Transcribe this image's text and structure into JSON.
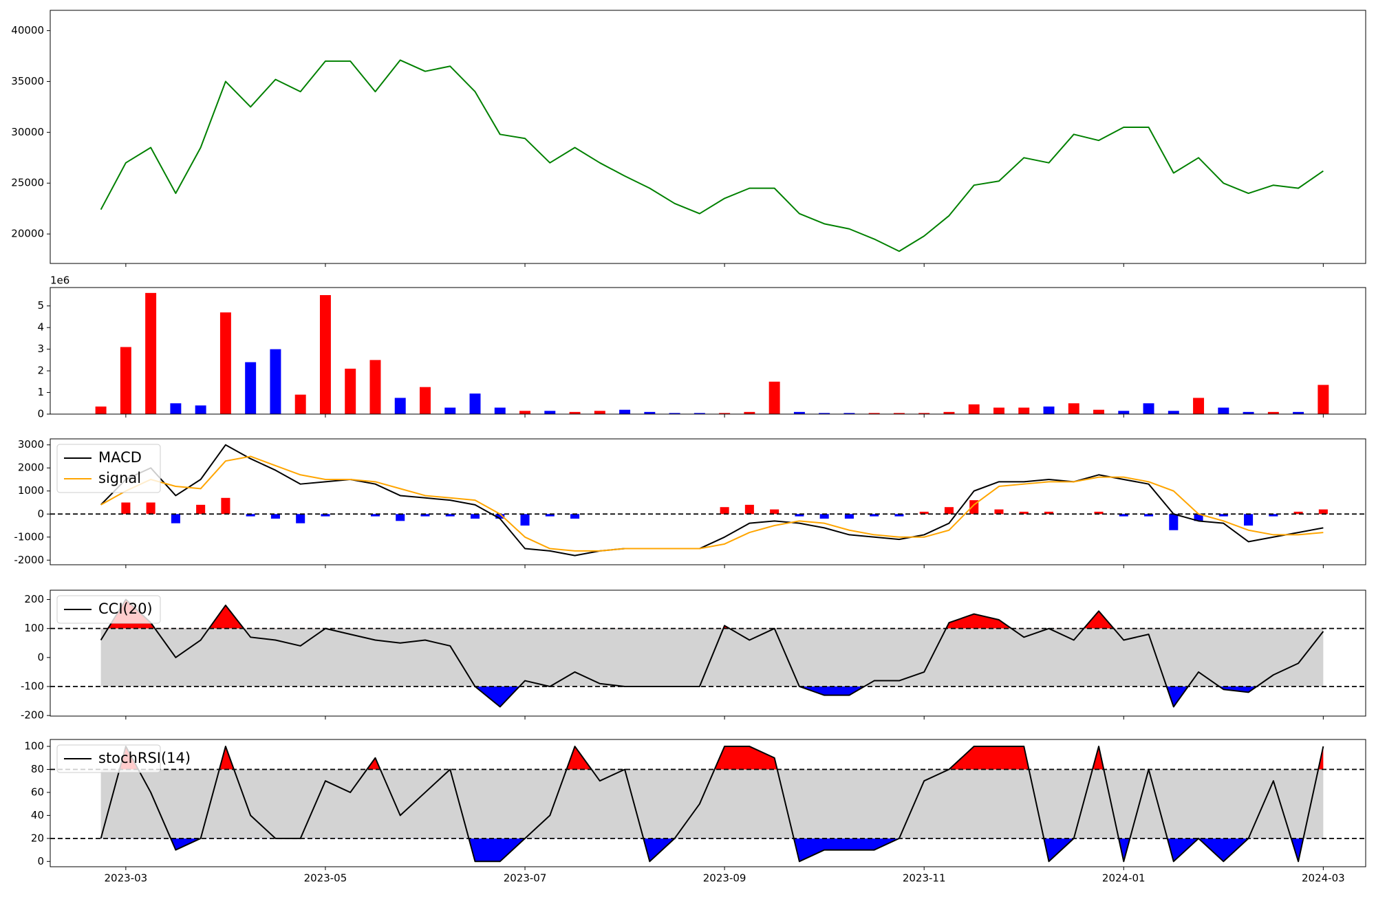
{
  "chart_data": {
    "type": "multi-panel",
    "categories": [
      null,
      "2023-03",
      null,
      null,
      null,
      null,
      null,
      null,
      null,
      "2023-05",
      null,
      null,
      null,
      null,
      null,
      null,
      null,
      "2023-07",
      null,
      null,
      null,
      null,
      null,
      null,
      null,
      "2023-09",
      null,
      null,
      null,
      null,
      null,
      null,
      null,
      "2023-11",
      null,
      null,
      null,
      null,
      null,
      null,
      null,
      "2024-01",
      null,
      null,
      null,
      null,
      null,
      null,
      null,
      "2024-03"
    ],
    "panels": [
      {
        "type": "line",
        "ylim": [
          17100,
          42000
        ],
        "yticks": [
          20000,
          25000,
          30000,
          35000,
          40000
        ],
        "series": [
          {
            "color": "#008000",
            "values": [
              22400,
              27000,
              28500,
              24000,
              28500,
              35000,
              32500,
              35200,
              34000,
              37000,
              37000,
              34000,
              37100,
              36000,
              36500,
              34000,
              29800,
              29400,
              27000,
              28500,
              27000,
              25700,
              24500,
              23000,
              22000,
              23500,
              24500,
              24500,
              22000,
              21000,
              20500,
              19500,
              18300,
              19800,
              21800,
              24800,
              25200,
              27500,
              27000,
              29800,
              29200,
              30500,
              30500,
              26000,
              27500,
              25000,
              24000,
              24800,
              24500,
              26200
            ]
          }
        ]
      },
      {
        "type": "bar",
        "offset_label": "1e6",
        "ylim": [
          0,
          5.85
        ],
        "yticks": [
          0,
          1,
          2,
          3,
          4,
          5
        ],
        "values": [
          0.35,
          3.1,
          5.6,
          0.5,
          0.4,
          4.7,
          2.4,
          3.0,
          0.9,
          5.5,
          2.1,
          2.5,
          0.75,
          1.25,
          0.3,
          0.95,
          0.3,
          0.15,
          0.15,
          0.1,
          0.15,
          0.2,
          0.1,
          0.05,
          0.05,
          0.05,
          0.1,
          1.5,
          0.1,
          0.05,
          0.05,
          0.05,
          0.05,
          0.05,
          0.1,
          0.45,
          0.3,
          0.3,
          0.35,
          0.5,
          0.2,
          0.15,
          0.5,
          0.15,
          0.75,
          0.3,
          0.1,
          0.1,
          0.1,
          1.35
        ],
        "colors": [
          "#ff0000",
          "#ff0000",
          "#ff0000",
          "#0000ff",
          "#0000ff",
          "#ff0000",
          "#0000ff",
          "#0000ff",
          "#ff0000",
          "#ff0000",
          "#ff0000",
          "#ff0000",
          "#0000ff",
          "#ff0000",
          "#0000ff",
          "#0000ff",
          "#0000ff",
          "#ff0000",
          "#0000ff",
          "#ff0000",
          "#ff0000",
          "#0000ff",
          "#0000ff",
          "#0000ff",
          "#0000ff",
          "#ff0000",
          "#ff0000",
          "#ff0000",
          "#0000ff",
          "#0000ff",
          "#0000ff",
          "#ff0000",
          "#ff0000",
          "#ff0000",
          "#ff0000",
          "#ff0000",
          "#ff0000",
          "#ff0000",
          "#0000ff",
          "#ff0000",
          "#ff0000",
          "#0000ff",
          "#0000ff",
          "#0000ff",
          "#ff0000",
          "#0000ff",
          "#0000ff",
          "#ff0000",
          "#0000ff",
          "#ff0000"
        ]
      },
      {
        "type": "macd",
        "legend": "upper left",
        "ylim": [
          -2200,
          3260
        ],
        "yticks": [
          -2000,
          -1000,
          0,
          1000,
          2000,
          3000
        ],
        "hlines": [
          0
        ],
        "series": [
          {
            "name": "MACD",
            "color": "#000000",
            "values": [
              400,
              1500,
              2000,
              800,
              1500,
              3000,
              2400,
              1900,
              1300,
              1400,
              1500,
              1300,
              800,
              700,
              600,
              400,
              -200,
              -1500,
              -1600,
              -1800,
              -1600,
              -1500,
              -1500,
              -1500,
              -1500,
              -1000,
              -400,
              -300,
              -400,
              -600,
              -900,
              -1000,
              -1100,
              -900,
              -400,
              1000,
              1400,
              1400,
              1500,
              1400,
              1700,
              1500,
              1300,
              0,
              -300,
              -400,
              -1200,
              -1000,
              -800,
              -600
            ]
          },
          {
            "name": "signal",
            "color": "#ffa500",
            "values": [
              400,
              1000,
              1500,
              1200,
              1100,
              2300,
              2500,
              2100,
              1700,
              1500,
              1500,
              1400,
              1100,
              800,
              700,
              600,
              0,
              -1000,
              -1500,
              -1600,
              -1600,
              -1500,
              -1500,
              -1500,
              -1500,
              -1300,
              -800,
              -500,
              -300,
              -400,
              -700,
              -900,
              -1000,
              -1000,
              -700,
              400,
              1200,
              1300,
              1400,
              1400,
              1600,
              1600,
              1400,
              1000,
              0,
              -300,
              -700,
              -900,
              -900,
              -800
            ]
          }
        ],
        "histogram": {
          "pos_color": "#ff0000",
          "neg_color": "#0000ff",
          "values": [
            0,
            500,
            500,
            -400,
            400,
            700,
            -100,
            -200,
            -400,
            -100,
            0,
            -100,
            -300,
            -100,
            -100,
            -200,
            -200,
            -500,
            -100,
            -200,
            0,
            0,
            0,
            0,
            0,
            300,
            400,
            200,
            -100,
            -200,
            -200,
            -100,
            -100,
            100,
            300,
            600,
            200,
            100,
            100,
            0,
            100,
            -100,
            -100,
            -700,
            -300,
            -100,
            -500,
            -100,
            100,
            200
          ]
        }
      },
      {
        "type": "oscillator",
        "legend": "upper left",
        "ylim": [
          -202,
          232
        ],
        "yticks": [
          -200,
          -100,
          0,
          100,
          200
        ],
        "levels": [
          -100,
          100
        ],
        "band_color": "#d3d3d3",
        "above_color": "#ff0000",
        "below_color": "#0000ff",
        "series": [
          {
            "name": "CCI(20)",
            "color": "#000000",
            "values": [
              60,
              200,
              120,
              0,
              60,
              180,
              70,
              60,
              40,
              100,
              80,
              60,
              50,
              60,
              40,
              -100,
              -170,
              -80,
              -100,
              -50,
              -90,
              -100,
              -100,
              -100,
              -100,
              110,
              60,
              100,
              -100,
              -130,
              -130,
              -80,
              -80,
              -50,
              120,
              150,
              130,
              70,
              100,
              60,
              160,
              60,
              80,
              -170,
              -50,
              -110,
              -120,
              -60,
              -20,
              90
            ]
          }
        ]
      },
      {
        "type": "oscillator",
        "legend": "upper left",
        "ylim": [
          -4.6,
          106
        ],
        "yticks": [
          0,
          20,
          40,
          60,
          80,
          100
        ],
        "levels": [
          20,
          80
        ],
        "band_color": "#d3d3d3",
        "above_color": "#ff0000",
        "below_color": "#0000ff",
        "series": [
          {
            "name": "stochRSI(14)",
            "color": "#000000",
            "values": [
              20,
              100,
              60,
              10,
              20,
              100,
              40,
              20,
              20,
              70,
              60,
              90,
              40,
              60,
              80,
              0,
              0,
              20,
              40,
              100,
              70,
              80,
              0,
              20,
              50,
              100,
              100,
              90,
              0,
              10,
              10,
              10,
              20,
              70,
              80,
              100,
              100,
              100,
              0,
              20,
              100,
              0,
              80,
              0,
              20,
              0,
              20,
              70,
              0,
              100
            ]
          }
        ]
      }
    ]
  }
}
